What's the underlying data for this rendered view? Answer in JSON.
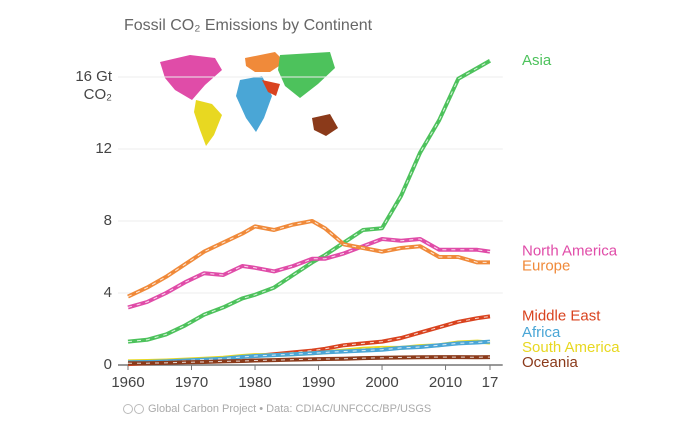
{
  "chart_data": {
    "type": "line",
    "title": "Fossil CO₂ Emissions by Continent",
    "ylabel": "CO₂",
    "source": "Global Carbon Project • Data: CDIAC/UNFCCC/BP/USGS",
    "x": [
      1960,
      1963,
      1966,
      1969,
      1972,
      1975,
      1978,
      1980,
      1983,
      1986,
      1989,
      1991,
      1994,
      1997,
      2000,
      2003,
      2006,
      2009,
      2012,
      2015,
      2017
    ],
    "series": [
      {
        "name": "Asia",
        "color": "#4dc25c",
        "values": [
          1.3,
          1.4,
          1.7,
          2.2,
          2.8,
          3.2,
          3.7,
          3.9,
          4.3,
          5.0,
          5.7,
          6.1,
          6.8,
          7.5,
          7.6,
          9.4,
          11.8,
          13.6,
          15.9,
          16.5,
          16.9
        ]
      },
      {
        "name": "North America",
        "color": "#e04ca8",
        "values": [
          3.2,
          3.5,
          4.0,
          4.6,
          5.1,
          5.0,
          5.5,
          5.4,
          5.2,
          5.5,
          5.9,
          5.9,
          6.2,
          6.6,
          7.0,
          6.9,
          7.0,
          6.4,
          6.4,
          6.4,
          6.3
        ]
      },
      {
        "name": "Europe",
        "color": "#f08a3a",
        "values": [
          3.8,
          4.3,
          4.9,
          5.6,
          6.3,
          6.8,
          7.3,
          7.7,
          7.5,
          7.8,
          8.0,
          7.6,
          6.7,
          6.5,
          6.3,
          6.5,
          6.6,
          6.0,
          6.0,
          5.7,
          5.7
        ]
      },
      {
        "name": "Middle East",
        "color": "#d9431f",
        "values": [
          0.05,
          0.1,
          0.15,
          0.2,
          0.3,
          0.35,
          0.45,
          0.5,
          0.6,
          0.7,
          0.8,
          0.9,
          1.1,
          1.2,
          1.3,
          1.5,
          1.8,
          2.1,
          2.4,
          2.6,
          2.7
        ]
      },
      {
        "name": "South America",
        "color": "#e8d821",
        "values": [
          0.2,
          0.22,
          0.25,
          0.3,
          0.35,
          0.4,
          0.5,
          0.55,
          0.55,
          0.6,
          0.65,
          0.7,
          0.8,
          0.9,
          0.95,
          0.95,
          1.05,
          1.1,
          1.25,
          1.3,
          1.25
        ]
      },
      {
        "name": "Africa",
        "color": "#4aa6d6",
        "values": [
          0.15,
          0.17,
          0.2,
          0.25,
          0.3,
          0.35,
          0.45,
          0.5,
          0.55,
          0.6,
          0.65,
          0.7,
          0.75,
          0.8,
          0.85,
          0.95,
          1.0,
          1.1,
          1.2,
          1.25,
          1.3
        ]
      },
      {
        "name": "Oceania",
        "color": "#8b3a1a",
        "values": [
          0.1,
          0.1,
          0.12,
          0.15,
          0.17,
          0.2,
          0.22,
          0.25,
          0.27,
          0.3,
          0.32,
          0.33,
          0.35,
          0.38,
          0.4,
          0.42,
          0.43,
          0.44,
          0.44,
          0.43,
          0.44
        ]
      }
    ],
    "xlim": [
      1958,
      2019
    ],
    "xticks": [
      1960,
      1970,
      1980,
      1990,
      2000,
      2010,
      {
        "value": 2017,
        "label": "17"
      }
    ],
    "ylim": [
      0,
      18
    ],
    "yticks": [
      0,
      4,
      8,
      12,
      {
        "value": 16,
        "label": "16 Gt"
      }
    ],
    "grid": true
  }
}
